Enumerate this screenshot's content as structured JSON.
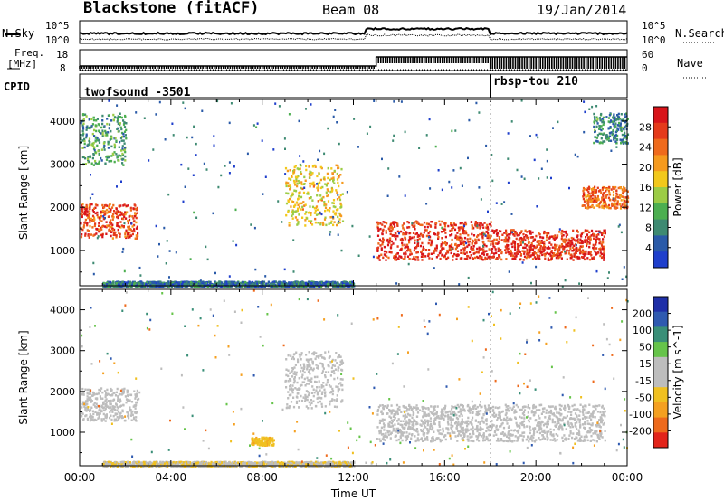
{
  "header": {
    "station": "Blackstone (fitACF)",
    "beam": "Beam 08",
    "date": "19/Jan/2014"
  },
  "noise_panel": {
    "left_label": "N.Sky",
    "right_label": "N.Search",
    "left_ticks": [
      "10^5",
      "10^0"
    ],
    "right_ticks": [
      "10^5",
      "10^0"
    ]
  },
  "freq_panel": {
    "left_label_top": "Freq.",
    "left_label_bottom": "[MHz]",
    "left_ticks": [
      "18",
      "8"
    ],
    "right_label": "Nave",
    "right_ticks": [
      "60",
      "0"
    ]
  },
  "cpid_panel": {
    "label": "CPID",
    "modes": [
      {
        "name": "twofsound -3501",
        "start": "00:00"
      },
      {
        "name": "rbsp-tou 210",
        "start": "18:00"
      }
    ]
  },
  "colors": {
    "power": [
      "#1f3fcc",
      "#2a5aa8",
      "#3e8a72",
      "#4caf50",
      "#9ccc45",
      "#f2c81b",
      "#f59a1e",
      "#ef6a1c",
      "#e53a1a",
      "#d8141a"
    ],
    "velocity": [
      "#1f2fa8",
      "#2f5ab0",
      "#3a8f78",
      "#66c44a",
      "#bdbdbd",
      "#bdbdbd",
      "#f0c020",
      "#f5a020",
      "#ee6a1c",
      "#e2241a"
    ]
  },
  "chart_data": [
    {
      "type": "heatmap",
      "title": "Power",
      "xlabel": "",
      "ylabel": "Slant Range [km]",
      "xlim": [
        "00:00",
        "24:00"
      ],
      "ylim": [
        180,
        4500
      ],
      "y_ticks": [
        1000,
        2000,
        3000,
        4000
      ],
      "colorbar": {
        "label": "Power [dB]",
        "range": [
          0,
          32
        ],
        "ticks": [
          "28",
          "24",
          "20",
          "16",
          "12",
          "8",
          "4"
        ]
      },
      "echo_regions": [
        {
          "time_start": "00:00",
          "time_end": "02:30",
          "range_start": 1300,
          "range_end": 2100,
          "power": 26
        },
        {
          "time_start": "00:00",
          "time_end": "02:00",
          "range_start": 3000,
          "range_end": 4200,
          "power": 10
        },
        {
          "time_start": "09:00",
          "time_end": "11:30",
          "range_start": 1600,
          "range_end": 3000,
          "power": 18
        },
        {
          "time_start": "13:00",
          "time_end": "18:00",
          "range_start": 800,
          "range_end": 1700,
          "power": 28
        },
        {
          "time_start": "18:00",
          "time_end": "23:00",
          "range_start": 800,
          "range_end": 1500,
          "power": 28
        },
        {
          "time_start": "22:00",
          "time_end": "24:00",
          "range_start": 2000,
          "range_end": 2500,
          "power": 24
        },
        {
          "time_start": "22:30",
          "time_end": "24:00",
          "range_start": 3500,
          "range_end": 4200,
          "power": 8
        },
        {
          "time_start": "01:00",
          "time_end": "12:00",
          "range_start": 180,
          "range_end": 300,
          "power": 6
        }
      ]
    },
    {
      "type": "heatmap",
      "title": "Velocity",
      "xlabel": "Time UT",
      "ylabel": "Slant Range [km]",
      "xlim": [
        "00:00",
        "24:00"
      ],
      "ylim": [
        180,
        4500
      ],
      "x_ticks": [
        "00:00",
        "04:00",
        "08:00",
        "12:00",
        "16:00",
        "20:00",
        "00:00"
      ],
      "y_ticks": [
        1000,
        2000,
        3000,
        4000
      ],
      "colorbar": {
        "label": "Velocity [m s^-1]",
        "range": [
          -250,
          250
        ],
        "ticks": [
          "200",
          "100",
          "50",
          "15",
          "-15",
          "-50",
          "-100",
          "-200"
        ]
      },
      "echo_regions": [
        {
          "time_start": "00:00",
          "time_end": "02:30",
          "range_start": 1300,
          "range_end": 2100,
          "velocity": 0
        },
        {
          "time_start": "09:00",
          "time_end": "11:30",
          "range_start": 1600,
          "range_end": 3000,
          "velocity": 0
        },
        {
          "time_start": "13:00",
          "time_end": "23:00",
          "range_start": 800,
          "range_end": 1700,
          "velocity": 0
        },
        {
          "time_start": "07:30",
          "time_end": "08:30",
          "range_start": 700,
          "range_end": 900,
          "velocity": -80
        },
        {
          "time_start": "01:00",
          "time_end": "12:00",
          "range_start": 180,
          "range_end": 300,
          "velocity": -40
        }
      ]
    }
  ]
}
